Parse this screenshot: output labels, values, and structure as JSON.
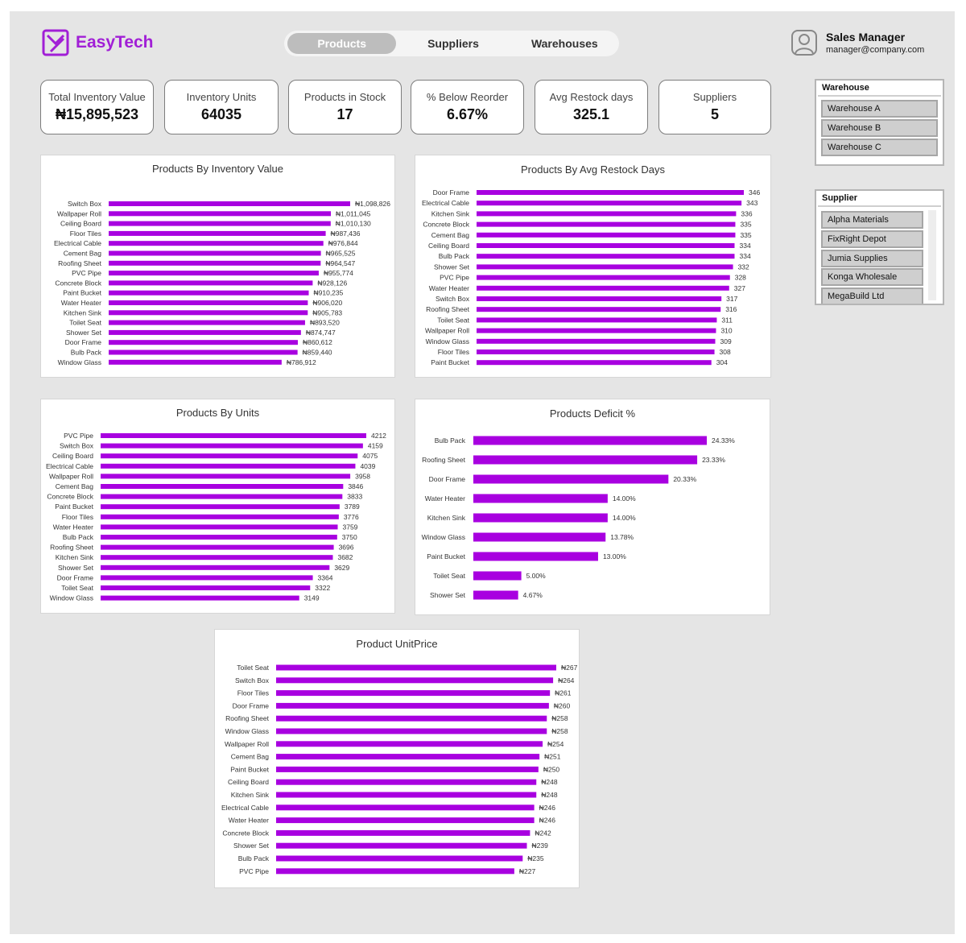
{
  "app": {
    "brand": "EasyTech",
    "colors": {
      "accent": "#a800e0",
      "brand": "#a11fd6",
      "background": "#e5e5e5"
    }
  },
  "nav": {
    "tabs": [
      "Products",
      "Suppliers",
      "Warehouses"
    ],
    "active": "Products"
  },
  "user": {
    "role": "Sales Manager",
    "email": "manager@company.com",
    "icon": "user-avatar-icon"
  },
  "kpis": [
    {
      "label": "Total Inventory Value",
      "value": "₦15,895,523"
    },
    {
      "label": "Inventory Units",
      "value": "64035"
    },
    {
      "label": "Products in Stock",
      "value": "17"
    },
    {
      "label": "% Below Reorder",
      "value": "6.67%"
    },
    {
      "label": "Avg Restock days",
      "value": "325.1"
    },
    {
      "label": "Suppliers",
      "value": "5"
    }
  ],
  "slicers": {
    "warehouse": {
      "title": "Warehouse",
      "items": [
        "Warehouse A",
        "Warehouse B",
        "Warehouse C"
      ]
    },
    "supplier": {
      "title": "Supplier",
      "items": [
        "Alpha Materials",
        "FixRight Depot",
        "Jumia Supplies",
        "Konga Wholesale",
        "MegaBuild Ltd"
      ]
    }
  },
  "chart_data": [
    {
      "id": "inventory_value",
      "type": "bar",
      "orientation": "horizontal",
      "title": "Products By Inventory Value",
      "categories": [
        "Switch Box",
        "Wallpaper Roll",
        "Ceiling Board",
        "Floor Tiles",
        "Electrical Cable",
        "Cement Bag",
        "Roofing Sheet",
        "PVC Pipe",
        "Concrete Block",
        "Paint Bucket",
        "Water Heater",
        "Kitchen Sink",
        "Toilet Seat",
        "Shower Set",
        "Door Frame",
        "Bulb Pack",
        "Window Glass"
      ],
      "values": [
        1098826,
        1011045,
        1010130,
        987436,
        976844,
        965525,
        964547,
        955774,
        928126,
        910235,
        906020,
        905783,
        893520,
        874747,
        860612,
        859440,
        786912
      ],
      "labels": [
        "₦1,098,826",
        "₦1,011,045",
        "₦1,010,130",
        "₦987,436",
        "₦976,844",
        "₦965,525",
        "₦964,547",
        "₦955,774",
        "₦928,126",
        "₦910,235",
        "₦906,020",
        "₦905,783",
        "₦893,520",
        "₦874,747",
        "₦860,612",
        "₦859,440",
        "₦786,912"
      ],
      "xlim": [
        0,
        1098826
      ]
    },
    {
      "id": "restock_days",
      "type": "bar",
      "orientation": "horizontal",
      "title": "Products By Avg Restock Days",
      "categories": [
        "Door Frame",
        "Electrical Cable",
        "Kitchen Sink",
        "Concrete Block",
        "Cement Bag",
        "Ceiling Board",
        "Bulb Pack",
        "Shower Set",
        "PVC Pipe",
        "Water Heater",
        "Switch Box",
        "Roofing Sheet",
        "Toilet Seat",
        "Wallpaper Roll",
        "Window Glass",
        "Floor Tiles",
        "Paint Bucket"
      ],
      "values": [
        346,
        343,
        336,
        335,
        335,
        334,
        334,
        332,
        328,
        327,
        317,
        316,
        311,
        310,
        309,
        308,
        304
      ],
      "labels": [
        "346",
        "343",
        "336",
        "335",
        "335",
        "334",
        "334",
        "332",
        "328",
        "327",
        "317",
        "316",
        "311",
        "310",
        "309",
        "308",
        "304"
      ],
      "xlim": [
        0,
        346
      ]
    },
    {
      "id": "units",
      "type": "bar",
      "orientation": "horizontal",
      "title": "Products By Units",
      "categories": [
        "PVC Pipe",
        "Switch Box",
        "Ceiling Board",
        "Electrical Cable",
        "Wallpaper Roll",
        "Cement Bag",
        "Concrete Block",
        "Paint Bucket",
        "Floor Tiles",
        "Water Heater",
        "Bulb Pack",
        "Roofing Sheet",
        "Kitchen Sink",
        "Shower Set",
        "Door Frame",
        "Toilet Seat",
        "Window Glass"
      ],
      "values": [
        4212,
        4159,
        4075,
        4039,
        3958,
        3846,
        3833,
        3789,
        3776,
        3759,
        3750,
        3696,
        3682,
        3629,
        3364,
        3322,
        3149
      ],
      "labels": [
        "4212",
        "4159",
        "4075",
        "4039",
        "3958",
        "3846",
        "3833",
        "3789",
        "3776",
        "3759",
        "3750",
        "3696",
        "3682",
        "3629",
        "3364",
        "3322",
        "3149"
      ],
      "xlim": [
        0,
        4212
      ]
    },
    {
      "id": "deficit",
      "type": "bar",
      "orientation": "horizontal",
      "title": "Products Deficit %",
      "categories": [
        "Bulb Pack",
        "Roofing Sheet",
        "Door Frame",
        "Water Heater",
        "Kitchen Sink",
        "Window Glass",
        "Paint Bucket",
        "Toilet Seat",
        "Shower Set"
      ],
      "values": [
        24.33,
        23.33,
        20.33,
        14.0,
        14.0,
        13.78,
        13.0,
        5.0,
        4.67
      ],
      "labels": [
        "24.33%",
        "23.33%",
        "20.33%",
        "14.00%",
        "14.00%",
        "13.78%",
        "13.00%",
        "5.00%",
        "4.67%"
      ],
      "xlim": [
        0,
        24.33
      ]
    },
    {
      "id": "unit_price",
      "type": "bar",
      "orientation": "horizontal",
      "title": "Product UnitPrice",
      "categories": [
        "Toilet Seat",
        "Switch Box",
        "Floor Tiles",
        "Door Frame",
        "Roofing Sheet",
        "Window Glass",
        "Wallpaper Roll",
        "Cement Bag",
        "Paint Bucket",
        "Ceiling Board",
        "Kitchen Sink",
        "Electrical Cable",
        "Water Heater",
        "Concrete Block",
        "Shower Set",
        "Bulb Pack",
        "PVC Pipe"
      ],
      "values": [
        267,
        264,
        261,
        260,
        258,
        258,
        254,
        251,
        250,
        248,
        248,
        246,
        246,
        242,
        239,
        235,
        227
      ],
      "labels": [
        "₦267",
        "₦264",
        "₦261",
        "₦260",
        "₦258",
        "₦258",
        "₦254",
        "₦251",
        "₦250",
        "₦248",
        "₦248",
        "₦246",
        "₦246",
        "₦242",
        "₦239",
        "₦235",
        "₦227"
      ],
      "xlim": [
        0,
        267
      ]
    }
  ]
}
